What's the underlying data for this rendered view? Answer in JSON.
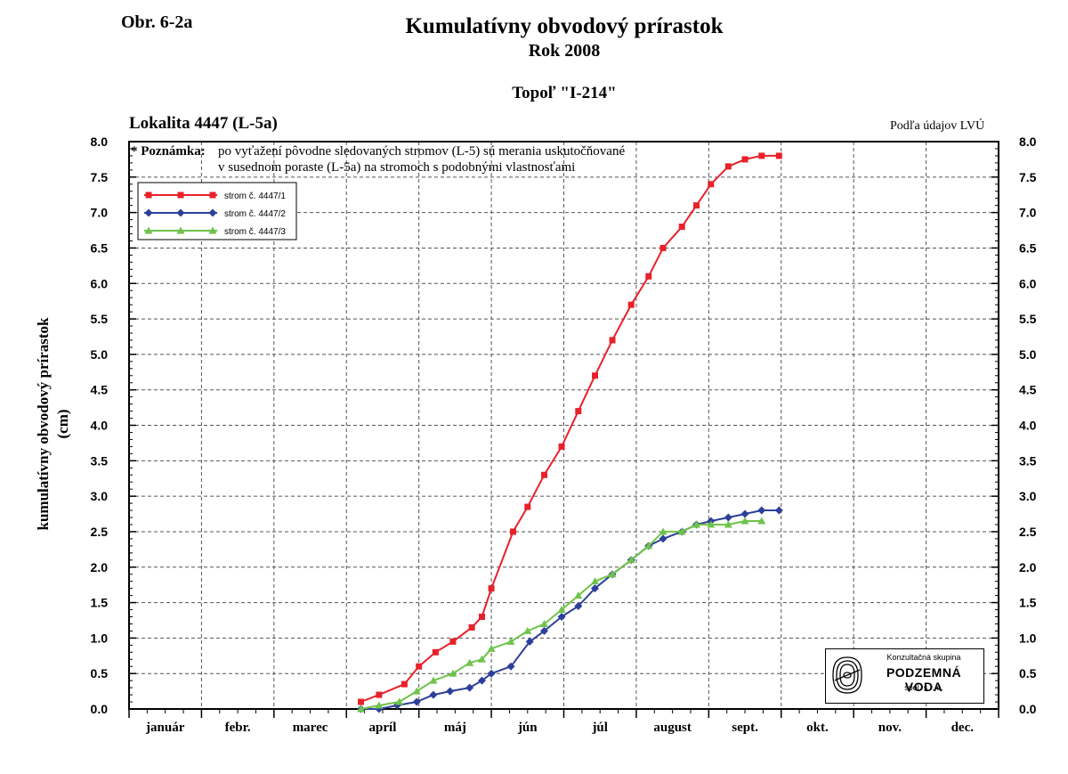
{
  "figure_label": "Obr. 6-2a",
  "species": "Topoľ \"I-214\"",
  "locality": "Lokalita 4447 (L-5a)",
  "source_note": "Podľa údajov LVÚ",
  "note": {
    "prefix": "* Poznámka:",
    "line1": "po vyťažení pôvodne sledovaných stromov (L-5) sú merania uskutočňované",
    "line2": "v susednom poraste (L-5a) na stromoch s podobnými vlastnosťami"
  },
  "logo": {
    "line1": "Konzultačná skupina",
    "line2": "PODZEMNÁ VODA",
    "line3": "spol. s r. o."
  },
  "colors": {
    "series1": "#e8212a",
    "series2": "#2d3f9a",
    "series3": "#6fc34a",
    "grid": "#555555"
  },
  "chart_data": {
    "type": "line",
    "title": "Kumulatívny obvodový prírastok",
    "subtitle": "Rok 2008",
    "ylabel": [
      "kumulatívny obvodový prírastok",
      "(cm)"
    ],
    "xlabel": "",
    "x_unit": "month index (0 = start of január, 12 = end of dec.)",
    "months": [
      "január",
      "febr.",
      "marec",
      "apríl",
      "máj",
      "jún",
      "júl",
      "august",
      "sept.",
      "okt.",
      "nov.",
      "dec."
    ],
    "ylim": [
      0,
      8
    ],
    "yticks": [
      "0.0",
      "0.5",
      "1.0",
      "1.5",
      "2.0",
      "2.5",
      "3.0",
      "3.5",
      "4.0",
      "4.5",
      "5.0",
      "5.5",
      "6.0",
      "6.5",
      "7.0",
      "7.5",
      "8.0"
    ],
    "grid": "dashed",
    "legend_position": "top-left",
    "series": [
      {
        "name": "strom č. 4447/1",
        "marker": "square",
        "color": "#e8212a",
        "x": [
          3.2,
          3.45,
          3.8,
          4.0,
          4.23,
          4.47,
          4.73,
          4.87,
          5.0,
          5.3,
          5.5,
          5.73,
          5.97,
          6.2,
          6.43,
          6.67,
          6.93,
          7.17,
          7.37,
          7.63,
          7.83,
          8.03,
          8.27,
          8.5,
          8.73,
          8.97
        ],
        "y": [
          0.1,
          0.2,
          0.35,
          0.6,
          0.8,
          0.95,
          1.15,
          1.3,
          1.7,
          2.5,
          2.85,
          3.3,
          3.7,
          4.2,
          4.7,
          5.2,
          5.7,
          6.1,
          6.5,
          6.8,
          7.1,
          7.4,
          7.65,
          7.75,
          7.8,
          7.8
        ]
      },
      {
        "name": "strom č. 4447/2",
        "marker": "diamond",
        "color": "#2d3f9a",
        "x": [
          3.2,
          3.45,
          3.7,
          3.97,
          4.2,
          4.43,
          4.7,
          4.87,
          5.0,
          5.27,
          5.53,
          5.73,
          5.97,
          6.2,
          6.43,
          6.67,
          6.93,
          7.17,
          7.37,
          7.63,
          7.83,
          8.03,
          8.27,
          8.5,
          8.73,
          8.97
        ],
        "y": [
          0.0,
          0.0,
          0.05,
          0.1,
          0.2,
          0.25,
          0.3,
          0.4,
          0.5,
          0.6,
          0.95,
          1.1,
          1.3,
          1.45,
          1.7,
          1.9,
          2.1,
          2.3,
          2.4,
          2.5,
          2.6,
          2.65,
          2.7,
          2.75,
          2.8,
          2.8
        ]
      },
      {
        "name": "strom č. 4447/3",
        "marker": "triangle",
        "color": "#6fc34a",
        "x": [
          3.2,
          3.45,
          3.73,
          3.97,
          4.2,
          4.47,
          4.7,
          4.87,
          5.0,
          5.27,
          5.5,
          5.73,
          5.97,
          6.2,
          6.43,
          6.67,
          6.93,
          7.17,
          7.37,
          7.63,
          7.83,
          8.03,
          8.27,
          8.5,
          8.73
        ],
        "y": [
          0.0,
          0.05,
          0.1,
          0.25,
          0.4,
          0.5,
          0.65,
          0.7,
          0.85,
          0.95,
          1.1,
          1.2,
          1.4,
          1.6,
          1.8,
          1.9,
          2.1,
          2.3,
          2.5,
          2.5,
          2.6,
          2.6,
          2.6,
          2.65,
          2.65
        ]
      }
    ]
  }
}
